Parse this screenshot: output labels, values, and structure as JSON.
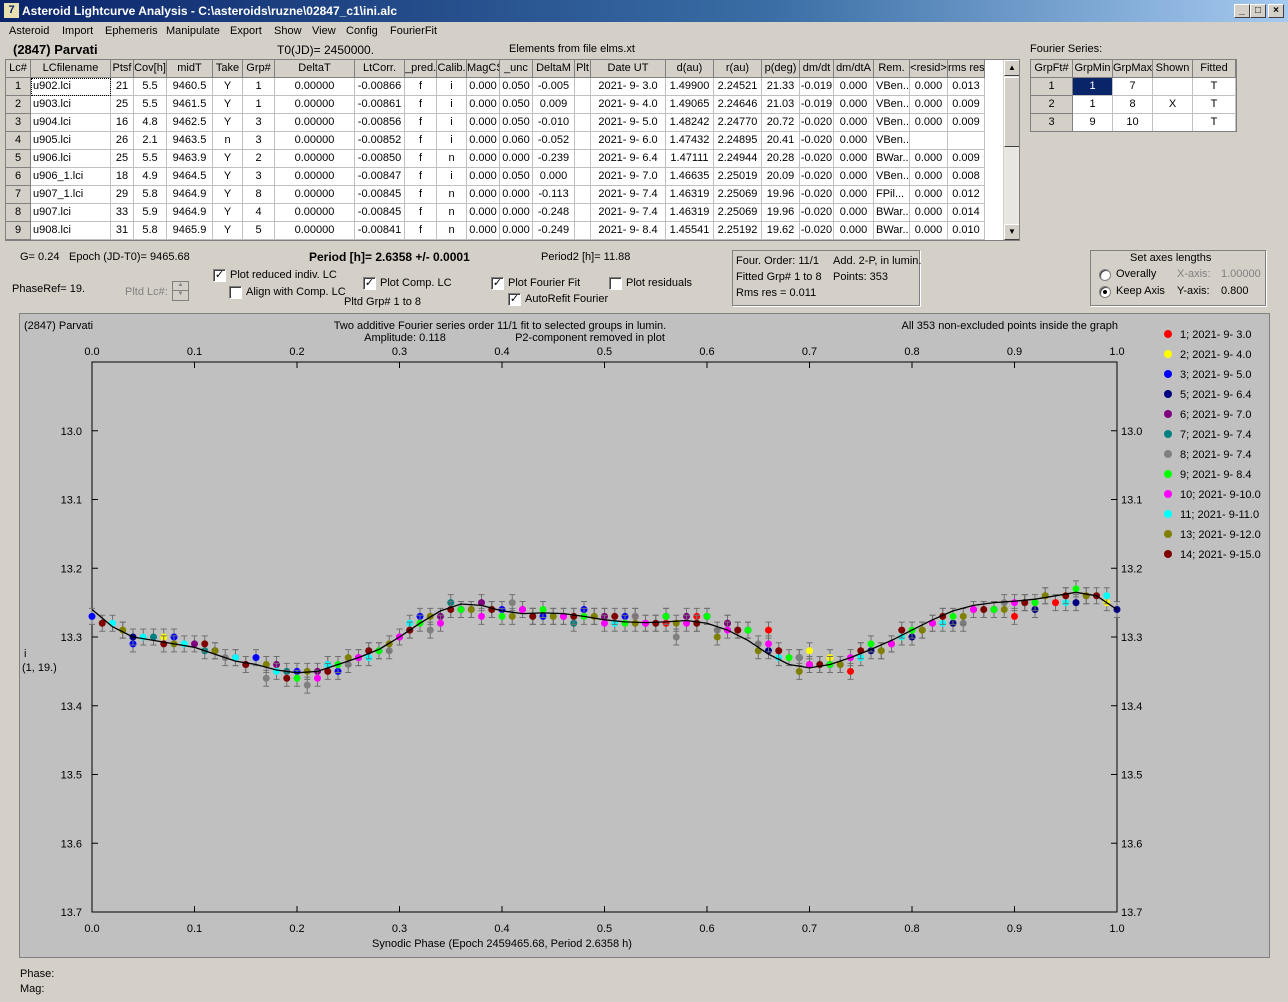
{
  "window": {
    "title": "Asteroid Lightcurve Analysis - C:\\asteroids\\ruzne\\02847_c1\\ini.alc",
    "icon_glyph": "7"
  },
  "menu": [
    "Asteroid",
    "Import",
    "Ephemeris",
    "Manipulate",
    "Export",
    "Show",
    "View",
    "Config",
    "FourierFit"
  ],
  "header": {
    "object": "(2847) Parvati",
    "t0": "T0(JD)= 2450000.",
    "elements": "Elements from file elms.xt",
    "fourier_label": "Fourier Series:"
  },
  "lc_table": {
    "columns": [
      "Lc#",
      "LCfilename",
      "Ptsf",
      "Cov[h]",
      "midT",
      "Take",
      "Grp#",
      "DeltaT",
      "LtCorr.",
      "_pred.",
      "Calib.",
      "MagCS",
      "_unc",
      "DeltaM",
      "Plt",
      "Date UT",
      "d(au)",
      "r(au)",
      "p(deg)",
      "dm/dt",
      "dm/dtA",
      "Rem.",
      "<resid>",
      "rms res"
    ],
    "rows": [
      [
        "1",
        "u902.lci",
        "21",
        "5.5",
        "9460.5",
        "Y",
        "1",
        "0.00000",
        "-0.00866",
        "f",
        "i",
        "0.000",
        "0.050",
        "-0.005",
        "",
        "2021- 9- 3.0",
        "1.49900",
        "2.24521",
        "21.33",
        "-0.019",
        "0.000",
        "VBen...",
        "0.000",
        "0.013"
      ],
      [
        "2",
        "u903.lci",
        "25",
        "5.5",
        "9461.5",
        "Y",
        "1",
        "0.00000",
        "-0.00861",
        "f",
        "i",
        "0.000",
        "0.050",
        "0.009",
        "",
        "2021- 9- 4.0",
        "1.49065",
        "2.24646",
        "21.03",
        "-0.019",
        "0.000",
        "VBen...",
        "0.000",
        "0.009"
      ],
      [
        "3",
        "u904.lci",
        "16",
        "4.8",
        "9462.5",
        "Y",
        "3",
        "0.00000",
        "-0.00856",
        "f",
        "i",
        "0.000",
        "0.050",
        "-0.010",
        "",
        "2021- 9- 5.0",
        "1.48242",
        "2.24770",
        "20.72",
        "-0.020",
        "0.000",
        "VBen...",
        "0.000",
        "0.009"
      ],
      [
        "4",
        "u905.lci",
        "26",
        "2.1",
        "9463.5",
        "n",
        "3",
        "0.00000",
        "-0.00852",
        "f",
        "i",
        "0.000",
        "0.060",
        "-0.052",
        "",
        "2021- 9- 6.0",
        "1.47432",
        "2.24895",
        "20.41",
        "-0.020",
        "0.000",
        "VBen...",
        "",
        ""
      ],
      [
        "5",
        "u906.lci",
        "25",
        "5.5",
        "9463.9",
        "Y",
        "2",
        "0.00000",
        "-0.00850",
        "f",
        "n",
        "0.000",
        "0.000",
        "-0.239",
        "",
        "2021- 9- 6.4",
        "1.47111",
        "2.24944",
        "20.28",
        "-0.020",
        "0.000",
        "BWar...",
        "0.000",
        "0.009"
      ],
      [
        "6",
        "u906_1.lci",
        "18",
        "4.9",
        "9464.5",
        "Y",
        "3",
        "0.00000",
        "-0.00847",
        "f",
        "i",
        "0.000",
        "0.050",
        "0.000",
        "",
        "2021- 9- 7.0",
        "1.46635",
        "2.25019",
        "20.09",
        "-0.020",
        "0.000",
        "VBen...",
        "0.000",
        "0.008"
      ],
      [
        "7",
        "u907_1.lci",
        "29",
        "5.8",
        "9464.9",
        "Y",
        "8",
        "0.00000",
        "-0.00845",
        "f",
        "n",
        "0.000",
        "0.000",
        "-0.113",
        "",
        "2021- 9- 7.4",
        "1.46319",
        "2.25069",
        "19.96",
        "-0.020",
        "0.000",
        "FPil...",
        "0.000",
        "0.012"
      ],
      [
        "8",
        "u907.lci",
        "33",
        "5.9",
        "9464.9",
        "Y",
        "4",
        "0.00000",
        "-0.00845",
        "f",
        "n",
        "0.000",
        "0.000",
        "-0.248",
        "",
        "2021- 9- 7.4",
        "1.46319",
        "2.25069",
        "19.96",
        "-0.020",
        "0.000",
        "BWar...",
        "0.000",
        "0.014"
      ],
      [
        "9",
        "u908.lci",
        "31",
        "5.8",
        "9465.9",
        "Y",
        "5",
        "0.00000",
        "-0.00841",
        "f",
        "n",
        "0.000",
        "0.000",
        "-0.249",
        "",
        "2021- 9- 8.4",
        "1.45541",
        "2.25192",
        "19.62",
        "-0.020",
        "0.000",
        "BWar...",
        "0.000",
        "0.010"
      ]
    ]
  },
  "fourier_table": {
    "columns": [
      "GrpFt#",
      "GrpMin",
      "GrpMax",
      "Shown",
      "Fitted"
    ],
    "rows": [
      [
        "1",
        "1",
        "7",
        "",
        "T"
      ],
      [
        "2",
        "1",
        "8",
        "X",
        "T"
      ],
      [
        "3",
        "9",
        "10",
        "",
        "T"
      ]
    ]
  },
  "controls": {
    "g": "G= 0.24",
    "epoch": "Epoch (JD-T0)= 9465.68",
    "period": "Period [h]= 2.6358 +/- 0.0001",
    "period2": "Period2 [h]= 11.88",
    "phase_ref": "PhaseRef= 19.",
    "pltd_lc": "Pltd Lc#:",
    "plot_reduced": "Plot reduced indiv. LC",
    "align": "Align with Comp. LC",
    "plot_comp": "Plot Comp. LC",
    "pltd_grp": "Pltd Grp#  1   to   8",
    "plot_fourier": "Plot Fourier Fit",
    "autorefit": "AutoRefit Fourier",
    "plot_residuals": "Plot residuals",
    "four_order": "Four. Order: 11/1",
    "add_2p": "Add. 2-P, in lumin.",
    "fitted_grp": "Fitted Grp# 1 to 8",
    "points": "Points: 353",
    "rms_res": "Rms res      = 0.011",
    "axes_title": "Set axes lengths",
    "overally": "Overally",
    "keep_axis": "Keep Axis",
    "x_axis_label": "X-axis:",
    "x_axis_value": "1.00000",
    "y_axis_label": "Y-axis:",
    "y_axis_value": "0.800",
    "checks": {
      "plot_reduced": true,
      "align": false,
      "plot_comp": true,
      "plot_fourier": true,
      "autorefit": true,
      "plot_residuals": false
    },
    "radio_selected": "keep_axis"
  },
  "chart_data": {
    "type": "scatter",
    "object_label": "(2847) Parvati",
    "title": "Two additive Fourier series order 11/1 fit to selected groups in lumin.",
    "subtitle1": "Amplitude: 0.118",
    "subtitle2": "P2-component removed in plot",
    "note": "All 353 non-excluded points inside the graph",
    "xlabel": "Synodic Phase (Epoch 2459465.68, Period 2.6358 h)",
    "ylabel": "i",
    "ylabel2": "(1, 19.)",
    "xlim": [
      0.0,
      1.0
    ],
    "ylim": [
      13.7,
      12.9
    ],
    "y_inverted": true,
    "xticks": [
      "0.0",
      "0.1",
      "0.2",
      "0.3",
      "0.4",
      "0.5",
      "0.6",
      "0.7",
      "0.8",
      "0.9",
      "1.0"
    ],
    "yticks": [
      "13.0",
      "13.1",
      "13.2",
      "13.3",
      "13.4",
      "13.5",
      "13.6",
      "13.7"
    ],
    "legend_position": "right",
    "series": [
      {
        "name": "1; 2021- 9- 3.0",
        "color": "#ff0000",
        "x": [
          0.5,
          0.53,
          0.56,
          0.59,
          0.62,
          0.66,
          0.7,
          0.74,
          0.78,
          0.82,
          0.86,
          0.9,
          0.94,
          0.97
        ],
        "y": [
          13.27,
          13.27,
          13.28,
          13.27,
          13.28,
          13.29,
          13.34,
          13.35,
          13.31,
          13.28,
          13.26,
          13.27,
          13.25,
          13.24
        ]
      },
      {
        "name": "2; 2021- 9- 4.0",
        "color": "#ffff00",
        "x": [
          0.7,
          0.72,
          0.75,
          0.79,
          0.83,
          0.87,
          0.91,
          0.95,
          0.99,
          0.03,
          0.07
        ],
        "y": [
          13.32,
          13.33,
          13.32,
          13.3,
          13.27,
          13.26,
          13.25,
          13.24,
          13.25,
          13.29,
          13.3
        ]
      },
      {
        "name": "3; 2021- 9- 5.0",
        "color": "#0000ff",
        "x": [
          0.0,
          0.04,
          0.08,
          0.12,
          0.16,
          0.2,
          0.24,
          0.28,
          0.32,
          0.36,
          0.4,
          0.44,
          0.48,
          0.52,
          0.56,
          0.6,
          0.64
        ],
        "y": [
          13.27,
          13.31,
          13.3,
          13.32,
          13.33,
          13.35,
          13.35,
          13.32,
          13.27,
          13.26,
          13.26,
          13.27,
          13.26,
          13.27,
          13.27,
          13.27,
          13.29
        ]
      },
      {
        "name": "5; 2021- 9- 6.4",
        "color": "#000080",
        "x": [
          0.66,
          0.69,
          0.72,
          0.76,
          0.8,
          0.84,
          0.88,
          0.92,
          0.96,
          1.0,
          0.04
        ],
        "y": [
          13.32,
          13.33,
          13.34,
          13.32,
          13.3,
          13.28,
          13.26,
          13.26,
          13.25,
          13.26,
          13.3
        ]
      },
      {
        "name": "6; 2021- 9- 7.0",
        "color": "#800080",
        "x": [
          0.1,
          0.14,
          0.18,
          0.22,
          0.26,
          0.3,
          0.34,
          0.38,
          0.42,
          0.46,
          0.5,
          0.54,
          0.58,
          0.62
        ],
        "y": [
          13.31,
          13.33,
          13.34,
          13.35,
          13.33,
          13.3,
          13.27,
          13.25,
          13.26,
          13.27,
          13.27,
          13.28,
          13.27,
          13.28
        ]
      },
      {
        "name": "7; 2021- 9- 7.4",
        "color": "#008080",
        "x": [
          0.06,
          0.11,
          0.15,
          0.19,
          0.23,
          0.27,
          0.31,
          0.35,
          0.39,
          0.43,
          0.47
        ],
        "y": [
          13.3,
          13.32,
          13.34,
          13.35,
          13.34,
          13.32,
          13.29,
          13.25,
          13.26,
          13.27,
          13.28
        ]
      },
      {
        "name": "8; 2021- 9- 7.4",
        "color": "#808080",
        "x": [
          0.13,
          0.17,
          0.21,
          0.25,
          0.29,
          0.33,
          0.37,
          0.41,
          0.45,
          0.49,
          0.53,
          0.57,
          0.61,
          0.65,
          0.69,
          0.73,
          0.77,
          0.81,
          0.85,
          0.89,
          0.93
        ],
        "y": [
          13.33,
          13.36,
          13.37,
          13.34,
          13.32,
          13.29,
          13.26,
          13.25,
          13.27,
          13.27,
          13.27,
          13.3,
          13.29,
          13.31,
          13.33,
          13.34,
          13.32,
          13.29,
          13.28,
          13.25,
          13.24
        ]
      },
      {
        "name": "9; 2021- 9- 8.4",
        "color": "#00ff00",
        "x": [
          0.2,
          0.24,
          0.28,
          0.32,
          0.36,
          0.4,
          0.44,
          0.48,
          0.52,
          0.56,
          0.6,
          0.64,
          0.68,
          0.72,
          0.76,
          0.8,
          0.84,
          0.88,
          0.92,
          0.96
        ],
        "y": [
          13.36,
          13.34,
          13.32,
          13.28,
          13.26,
          13.27,
          13.26,
          13.27,
          13.28,
          13.27,
          13.27,
          13.29,
          13.33,
          13.34,
          13.31,
          13.29,
          13.27,
          13.26,
          13.25,
          13.23
        ]
      },
      {
        "name": "10; 2021- 9-10.0",
        "color": "#ff00ff",
        "x": [
          0.22,
          0.26,
          0.3,
          0.34,
          0.38,
          0.42,
          0.46,
          0.5,
          0.54,
          0.58,
          0.62,
          0.66,
          0.7,
          0.74,
          0.78,
          0.82,
          0.86,
          0.9
        ],
        "y": [
          13.36,
          13.33,
          13.3,
          13.28,
          13.27,
          13.26,
          13.27,
          13.28,
          13.28,
          13.28,
          13.29,
          13.31,
          13.34,
          13.33,
          13.31,
          13.28,
          13.26,
          13.25
        ]
      },
      {
        "name": "11; 2021- 9-11.0",
        "color": "#00ffff",
        "x": [
          0.02,
          0.05,
          0.09,
          0.14,
          0.18,
          0.23,
          0.27,
          0.31,
          0.35,
          0.39,
          0.43,
          0.47,
          0.51,
          0.55,
          0.59,
          0.63,
          0.67,
          0.71,
          0.75,
          0.79,
          0.83,
          0.87,
          0.91,
          0.95,
          0.99
        ],
        "y": [
          13.28,
          13.3,
          13.31,
          13.33,
          13.35,
          13.34,
          13.33,
          13.28,
          13.26,
          13.26,
          13.27,
          13.27,
          13.28,
          13.28,
          13.28,
          13.29,
          13.33,
          13.34,
          13.33,
          13.3,
          13.28,
          13.26,
          13.25,
          13.25,
          13.24
        ]
      },
      {
        "name": "13; 2021- 9-12.0",
        "color": "#808000",
        "x": [
          0.03,
          0.08,
          0.12,
          0.17,
          0.21,
          0.25,
          0.29,
          0.33,
          0.37,
          0.41,
          0.45,
          0.49,
          0.53,
          0.57,
          0.61,
          0.65,
          0.69,
          0.73,
          0.77,
          0.81,
          0.85,
          0.89,
          0.93,
          0.97
        ],
        "y": [
          13.29,
          13.31,
          13.32,
          13.34,
          13.35,
          13.33,
          13.31,
          13.27,
          13.26,
          13.27,
          13.27,
          13.27,
          13.28,
          13.28,
          13.3,
          13.32,
          13.35,
          13.34,
          13.32,
          13.29,
          13.27,
          13.26,
          13.24,
          13.24
        ]
      },
      {
        "name": "14; 2021- 9-15.0",
        "color": "#800000",
        "x": [
          0.01,
          0.07,
          0.11,
          0.15,
          0.19,
          0.23,
          0.27,
          0.31,
          0.35,
          0.39,
          0.43,
          0.47,
          0.51,
          0.55,
          0.59,
          0.63,
          0.67,
          0.71,
          0.75,
          0.79,
          0.83,
          0.87,
          0.91,
          0.95,
          0.98
        ],
        "y": [
          13.28,
          13.31,
          13.31,
          13.34,
          13.36,
          13.35,
          13.32,
          13.29,
          13.26,
          13.26,
          13.27,
          13.27,
          13.27,
          13.28,
          13.28,
          13.29,
          13.32,
          13.34,
          13.32,
          13.29,
          13.27,
          13.26,
          13.25,
          13.24,
          13.24
        ]
      }
    ],
    "fit_curve": {
      "x": [
        0.0,
        0.02,
        0.04,
        0.06,
        0.08,
        0.1,
        0.12,
        0.14,
        0.16,
        0.18,
        0.2,
        0.22,
        0.24,
        0.26,
        0.28,
        0.3,
        0.32,
        0.34,
        0.36,
        0.38,
        0.4,
        0.42,
        0.44,
        0.46,
        0.48,
        0.5,
        0.52,
        0.54,
        0.56,
        0.58,
        0.6,
        0.62,
        0.64,
        0.66,
        0.68,
        0.7,
        0.72,
        0.74,
        0.76,
        0.78,
        0.8,
        0.82,
        0.84,
        0.86,
        0.88,
        0.9,
        0.92,
        0.94,
        0.96,
        0.98,
        1.0
      ],
      "y": [
        13.26,
        13.285,
        13.3,
        13.305,
        13.31,
        13.315,
        13.325,
        13.335,
        13.34,
        13.348,
        13.352,
        13.35,
        13.34,
        13.33,
        13.318,
        13.3,
        13.28,
        13.262,
        13.252,
        13.254,
        13.262,
        13.266,
        13.265,
        13.266,
        13.27,
        13.275,
        13.278,
        13.279,
        13.278,
        13.276,
        13.28,
        13.29,
        13.305,
        13.325,
        13.34,
        13.345,
        13.34,
        13.33,
        13.318,
        13.305,
        13.29,
        13.275,
        13.262,
        13.254,
        13.25,
        13.248,
        13.245,
        13.24,
        13.235,
        13.24,
        13.26
      ]
    }
  }
}
